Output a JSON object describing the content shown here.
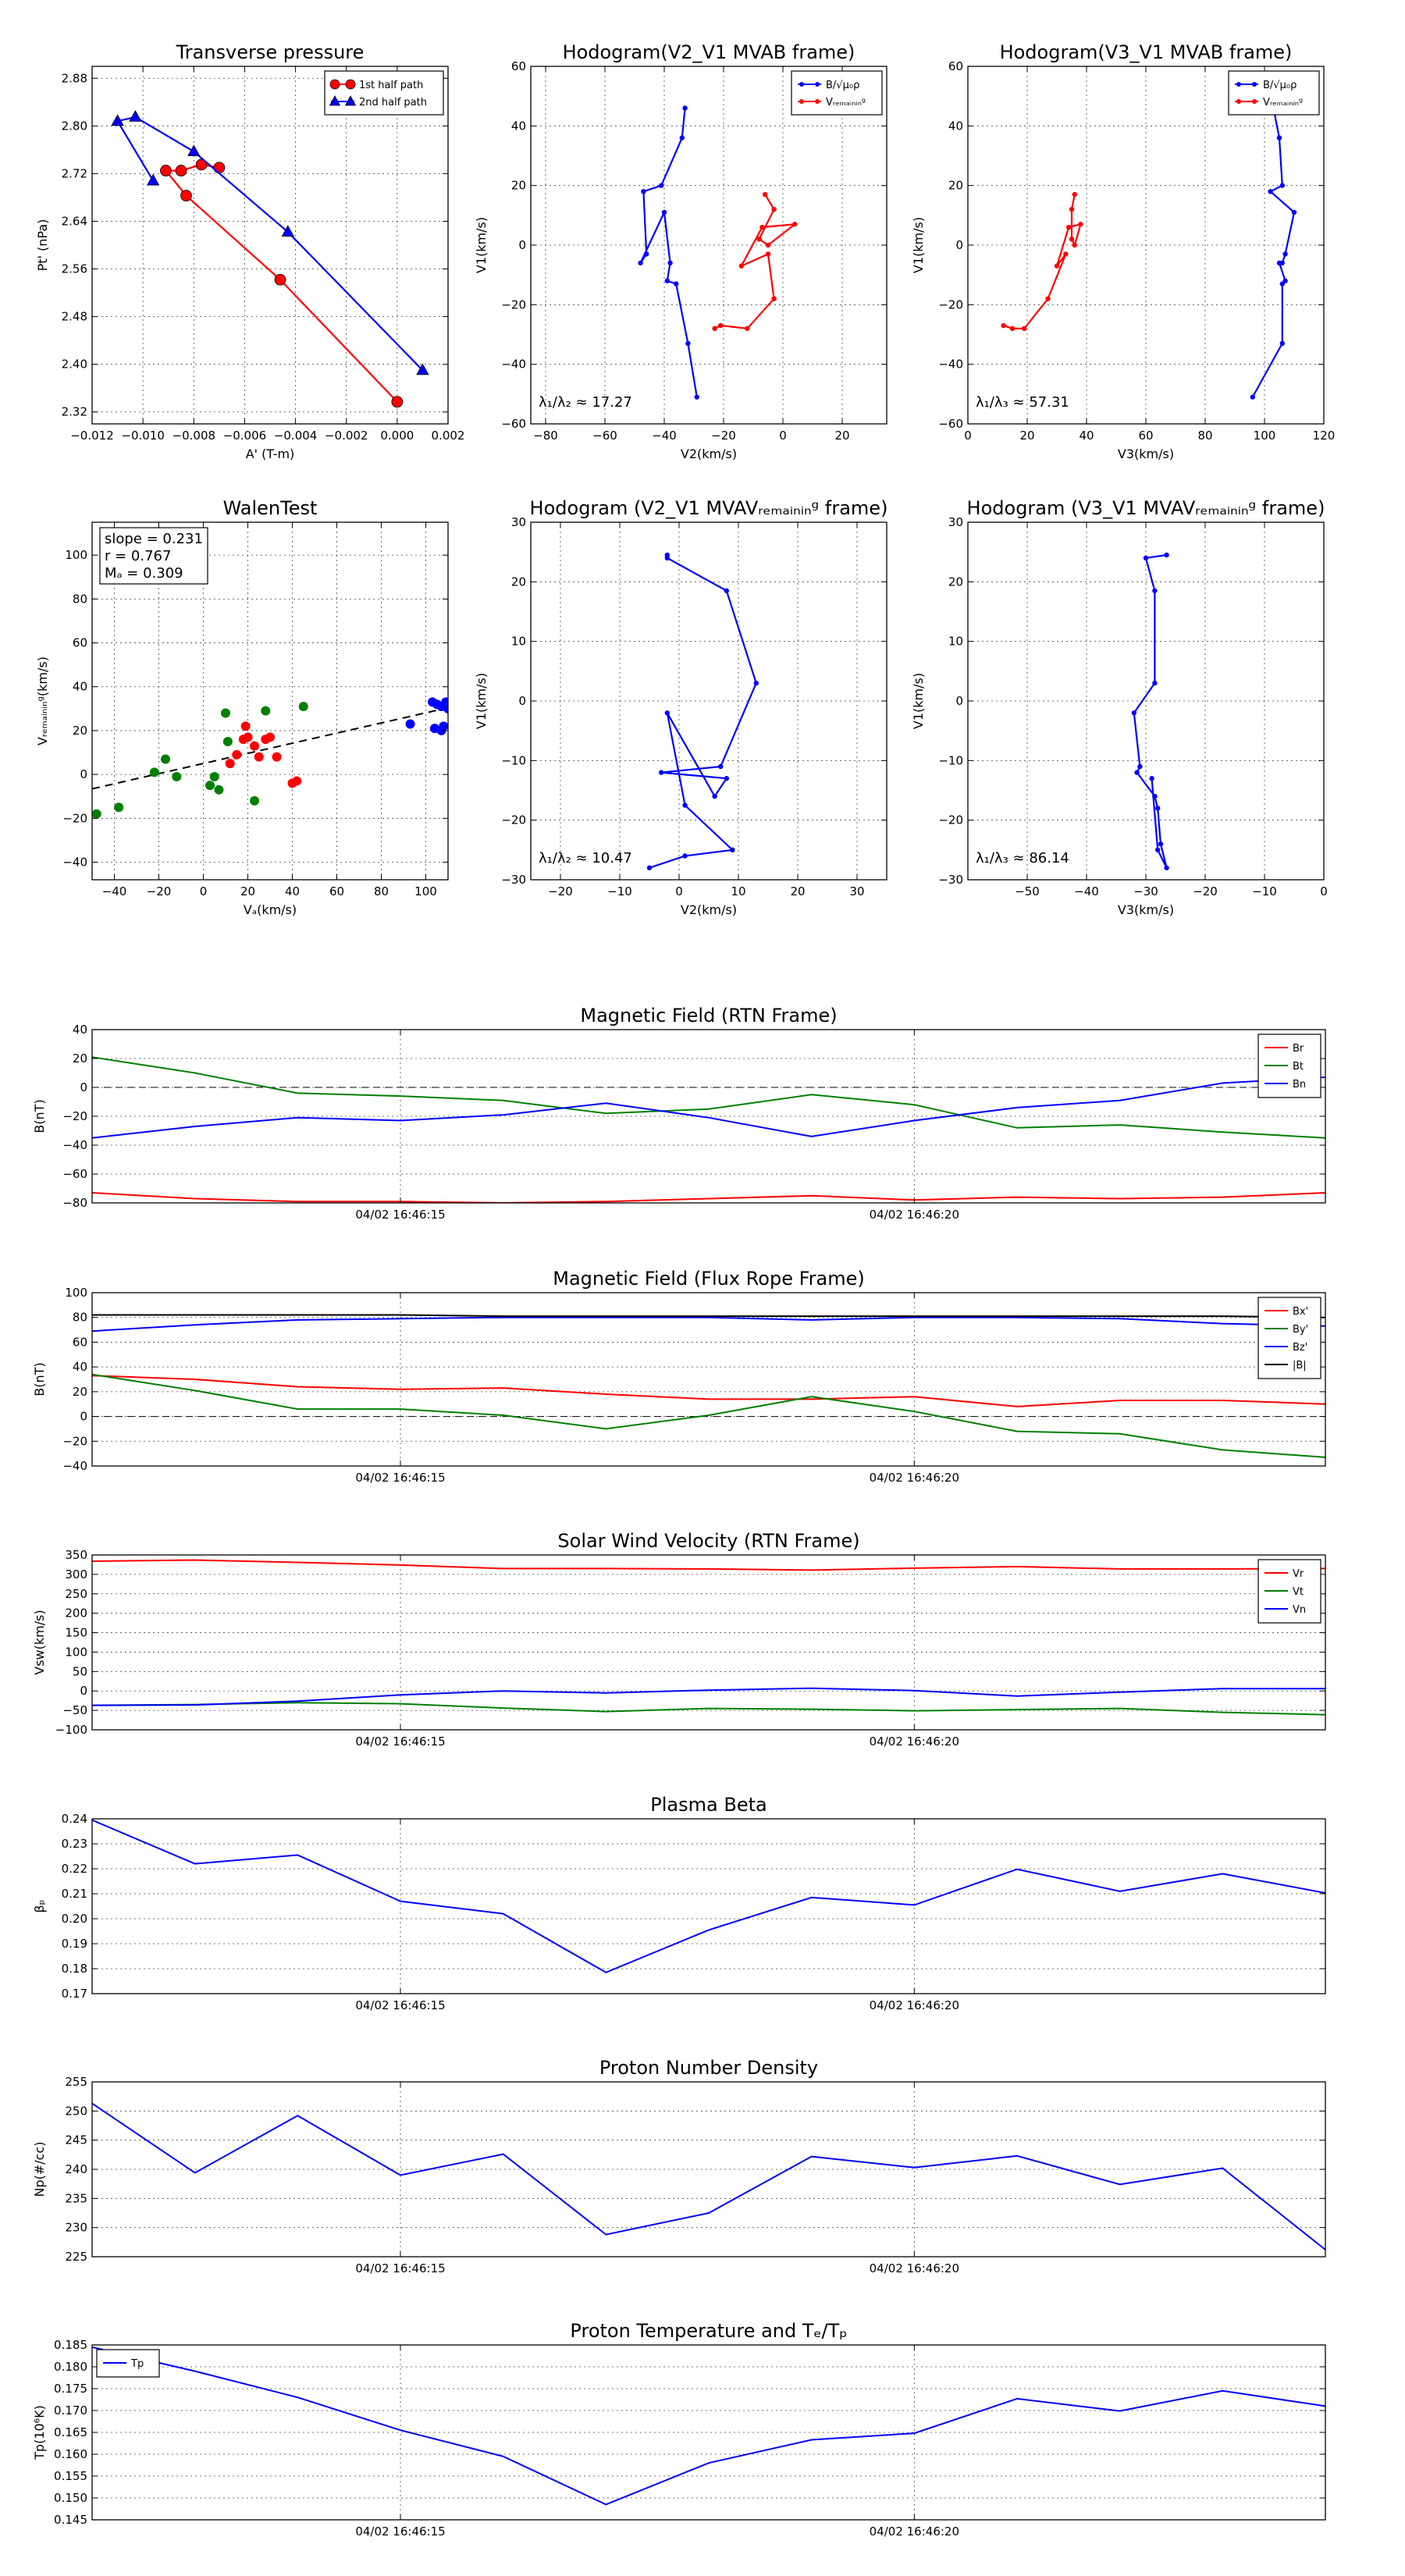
{
  "chart_data": [
    {
      "id": "pt",
      "type": "scatter",
      "title": "Transverse pressure",
      "xlabel": "A' (T-m)",
      "ylabel": "Pt' (nPa)",
      "xlim": [
        -0.012,
        0.002
      ],
      "ylim": [
        2.3,
        2.9
      ],
      "xticks": [
        -0.012,
        -0.01,
        -0.008,
        -0.006,
        -0.004,
        -0.002,
        0.0,
        0.002
      ],
      "xtick_labels": [
        "−0.012",
        "−0.010",
        "−0.008",
        "−0.006",
        "−0.004",
        "−0.002",
        "0.000",
        "0.002"
      ],
      "yticks": [
        2.32,
        2.4,
        2.48,
        2.56,
        2.64,
        2.72,
        2.8,
        2.88
      ],
      "ytick_labels": [
        "2.32",
        "2.40",
        "2.48",
        "2.56",
        "2.64",
        "2.72",
        "2.80",
        "2.88"
      ],
      "legend_position": "top-right",
      "series": [
        {
          "name": "1st half path",
          "color": "#ff0000",
          "marker": "circle",
          "x": [
            0.0,
            -0.0046,
            -0.0083,
            -0.0091,
            -0.0085,
            -0.0077,
            -0.007
          ],
          "y": [
            2.337,
            2.542,
            2.683,
            2.725,
            2.725,
            2.735,
            2.73
          ]
        },
        {
          "name": "2nd half path",
          "color": "#0000ff",
          "marker": "triangle",
          "x": [
            -0.0096,
            -0.011,
            -0.0103,
            -0.008,
            -0.0043,
            0.001
          ],
          "y": [
            2.708,
            2.808,
            2.815,
            2.757,
            2.622,
            2.39
          ]
        }
      ]
    },
    {
      "id": "hodo1",
      "type": "line",
      "title": "Hodogram(V2_V1 MVAB frame)",
      "xlabel": "V2(km/s)",
      "ylabel": "V1(km/s)",
      "xlim": [
        -85,
        35
      ],
      "ylim": [
        -60,
        60
      ],
      "xticks": [
        -80,
        -60,
        -40,
        -20,
        0,
        20
      ],
      "xtick_labels": [
        "−80",
        "−60",
        "−40",
        "−20",
        "0",
        "20"
      ],
      "yticks": [
        -60,
        -40,
        -20,
        0,
        20,
        40,
        60
      ],
      "ytick_labels": [
        "−60",
        "−40",
        "−20",
        "0",
        "20",
        "40",
        "60"
      ],
      "annotation": "λ₁/λ₂ ≈ 17.27",
      "legend_position": "top-right",
      "series": [
        {
          "name": "B/√μ₀ρ",
          "color": "#0000ff",
          "x": [
            -33,
            -34,
            -41,
            -47,
            -46,
            -48,
            -40,
            -38,
            -39,
            -36,
            -32,
            -29
          ],
          "y": [
            46,
            36,
            20,
            18,
            -3,
            -6,
            11,
            -6,
            -12,
            -13,
            -33,
            -51
          ]
        },
        {
          "name": "Vᵣₑₘₐᵢₙᵢₙᵍ",
          "color": "#ff0000",
          "x": [
            -23,
            -21,
            -12,
            -3,
            -5,
            -14,
            -7,
            4,
            -5,
            -8,
            -3,
            -6
          ],
          "y": [
            -28,
            -27,
            -28,
            -18,
            -3,
            -7,
            6,
            7,
            0,
            2,
            12,
            17
          ]
        }
      ]
    },
    {
      "id": "hodo2",
      "type": "line",
      "title": "Hodogram(V3_V1 MVAB frame)",
      "xlabel": "V3(km/s)",
      "ylabel": "V1(km/s)",
      "xlim": [
        0,
        120
      ],
      "ylim": [
        -60,
        60
      ],
      "xticks": [
        0,
        20,
        40,
        60,
        80,
        100,
        120
      ],
      "xtick_labels": [
        "0",
        "20",
        "40",
        "60",
        "80",
        "100",
        "120"
      ],
      "yticks": [
        -60,
        -40,
        -20,
        0,
        20,
        40,
        60
      ],
      "ytick_labels": [
        "−60",
        "−40",
        "−20",
        "0",
        "20",
        "40",
        "60"
      ],
      "annotation": "λ₁/λ₃ ≈ 57.31",
      "legend_position": "top-right",
      "series": [
        {
          "name": "B/√μ₀ρ",
          "color": "#0000ff",
          "x": [
            103,
            105,
            106,
            102,
            110,
            107,
            106,
            105,
            107,
            106,
            106,
            96
          ],
          "y": [
            46,
            36,
            20,
            18,
            11,
            -3,
            -6,
            -6,
            -12,
            -13,
            -33,
            -51
          ]
        },
        {
          "name": "Vᵣₑₘₐᵢₙᵢₙᵍ",
          "color": "#ff0000",
          "x": [
            12,
            15,
            19,
            27,
            33,
            30,
            34,
            38,
            36,
            35,
            35,
            36
          ],
          "y": [
            -27,
            -28,
            -28,
            -18,
            -3,
            -7,
            6,
            7,
            0,
            2,
            12,
            17
          ]
        }
      ]
    },
    {
      "id": "walen",
      "type": "scatter",
      "title": "WalenTest",
      "xlabel": "Vₐ(km/s)",
      "ylabel": "Vᵣₑₘₐᵢₙᵢₙᵍ(km/s)",
      "xlim": [
        -50,
        110
      ],
      "ylim": [
        -48,
        115
      ],
      "xticks": [
        -40,
        -20,
        0,
        20,
        40,
        60,
        80,
        100
      ],
      "xtick_labels": [
        "−40",
        "−20",
        "0",
        "20",
        "40",
        "60",
        "80",
        "100"
      ],
      "yticks": [
        -40,
        -20,
        0,
        20,
        40,
        60,
        80,
        100
      ],
      "ytick_labels": [
        "−40",
        "−20",
        "0",
        "20",
        "40",
        "60",
        "80",
        "100"
      ],
      "stats": [
        "slope = 0.231",
        "r = 0.767",
        "Mₐ = 0.309"
      ],
      "fit_line": {
        "slope": 0.231,
        "intercept": 5
      },
      "groups": [
        {
          "color": "#008000",
          "x": [
            -48,
            -38,
            -22,
            -17,
            -12,
            3,
            5,
            7,
            10,
            11,
            23,
            28,
            45
          ],
          "y": [
            -18,
            -15,
            1,
            7,
            -1,
            -5,
            -1,
            -7,
            28,
            15,
            -12,
            29,
            31
          ]
        },
        {
          "color": "#ff0000",
          "x": [
            12,
            15,
            18,
            19,
            20,
            23,
            25,
            28,
            30,
            33,
            40,
            42
          ],
          "y": [
            5,
            9,
            16,
            22,
            17,
            13,
            8,
            16,
            17,
            8,
            -4,
            -3
          ]
        },
        {
          "color": "#0000ff",
          "x": [
            93,
            103,
            105,
            107,
            109,
            110,
            112,
            104,
            107,
            108
          ],
          "y": [
            23,
            33,
            32,
            31,
            33,
            30,
            31,
            21,
            20,
            22
          ]
        }
      ]
    },
    {
      "id": "hodo3",
      "type": "line",
      "title": "Hodogram (V2_V1 MVAVᵣₑₘₐᵢₙᵢₙᵍ frame)",
      "xlabel": "V2(km/s)",
      "ylabel": "V1(km/s)",
      "xlim": [
        -25,
        35
      ],
      "ylim": [
        -30,
        30
      ],
      "xticks": [
        -20,
        -10,
        0,
        10,
        20,
        30
      ],
      "xtick_labels": [
        "−20",
        "−10",
        "0",
        "10",
        "20",
        "30"
      ],
      "yticks": [
        -30,
        -20,
        -10,
        0,
        10,
        20,
        30
      ],
      "ytick_labels": [
        "−30",
        "−20",
        "−10",
        "0",
        "10",
        "20",
        "30"
      ],
      "annotation": "λ₁/λ₂ ≈ 10.47",
      "series": [
        {
          "color": "#0000ff",
          "x": [
            -2,
            -2,
            8,
            13,
            7,
            -3,
            8,
            6,
            -2,
            1,
            9,
            1,
            -5
          ],
          "y": [
            24.5,
            24,
            18.5,
            3,
            -11,
            -12,
            -13,
            -16,
            -2,
            -17.5,
            -25,
            -26,
            -28
          ]
        }
      ]
    },
    {
      "id": "hodo4",
      "type": "line",
      "title": "Hodogram (V3_V1 MVAVᵣₑₘₐᵢₙᵢₙᵍ frame)",
      "xlabel": "V3(km/s)",
      "ylabel": "V1(km/s)",
      "xlim": [
        -60,
        0
      ],
      "ylim": [
        -30,
        30
      ],
      "xticks": [
        -50,
        -40,
        -30,
        -20,
        -10,
        0
      ],
      "xtick_labels": [
        "−50",
        "−40",
        "−30",
        "−20",
        "−10",
        "0"
      ],
      "yticks": [
        -30,
        -20,
        -10,
        0,
        10,
        20,
        30
      ],
      "ytick_labels": [
        "−30",
        "−20",
        "−10",
        "0",
        "10",
        "20",
        "30"
      ],
      "annotation": "λ₁/λ₃ ≈ 86.14",
      "series": [
        {
          "color": "#0000ff",
          "x": [
            -26.5,
            -30,
            -28.5,
            -28.5,
            -32,
            -31,
            -31.5,
            -28.5,
            -28,
            -27.5,
            -26.5,
            -28,
            -29
          ],
          "y": [
            24.5,
            24,
            18.5,
            3,
            -2,
            -11,
            -12,
            -16,
            -18,
            -24,
            -28,
            -25,
            -13
          ]
        }
      ]
    },
    {
      "id": "bfield",
      "type": "line",
      "title": "Magnetic Field (RTN Frame)",
      "ylabel": "B(nT)",
      "xlim": [
        0,
        12
      ],
      "ylim": [
        -80,
        40
      ],
      "yticks": [
        -80,
        -60,
        -40,
        -20,
        0,
        20,
        40
      ],
      "ytick_labels": [
        "−80",
        "−60",
        "−40",
        "−20",
        "0",
        "20",
        "40"
      ],
      "xticks": [
        3,
        8
      ],
      "xtick_labels": [
        "04/02 16:46:15",
        "04/02 16:46:20"
      ],
      "zero_line": true,
      "legend_position": "top-right",
      "series": [
        {
          "name": "Br",
          "color": "#ff0000",
          "values": [
            -73,
            -77,
            -79,
            -79,
            -80,
            -79,
            -77,
            -75,
            -78,
            -76,
            -77,
            -76,
            -73
          ]
        },
        {
          "name": "Bt",
          "color": "#008000",
          "values": [
            21,
            10,
            -4,
            -6,
            -9,
            -18,
            -15,
            -5,
            -12,
            -28,
            -26,
            -31,
            -35
          ]
        },
        {
          "name": "Bn",
          "color": "#0000ff",
          "values": [
            -35,
            -27,
            -21,
            -23,
            -19,
            -11,
            -21,
            -34,
            -23,
            -14,
            -9,
            3,
            7
          ]
        }
      ]
    },
    {
      "id": "bflux",
      "type": "line",
      "title": "Magnetic Field (Flux Rope Frame)",
      "ylabel": "B(nT)",
      "xlim": [
        0,
        12
      ],
      "ylim": [
        -40,
        100
      ],
      "yticks": [
        -40,
        -20,
        0,
        20,
        40,
        60,
        80,
        100
      ],
      "ytick_labels": [
        "−40",
        "−20",
        "0",
        "20",
        "40",
        "60",
        "80",
        "100"
      ],
      "xticks": [
        3,
        8
      ],
      "xtick_labels": [
        "04/02 16:46:15",
        "04/02 16:46:20"
      ],
      "zero_line": true,
      "legend_position": "top-right",
      "series": [
        {
          "name": "Bx'",
          "color": "#ff0000",
          "values": [
            33,
            30,
            24,
            22,
            23,
            18,
            14,
            14,
            16,
            8,
            13,
            13,
            10
          ]
        },
        {
          "name": "By'",
          "color": "#008000",
          "values": [
            34,
            21,
            6,
            6,
            1,
            -10,
            1,
            16,
            4,
            -12,
            -14,
            -27,
            -33
          ]
        },
        {
          "name": "Bz'",
          "color": "#0000ff",
          "values": [
            69,
            74,
            78,
            79,
            80,
            80,
            80,
            78,
            80,
            80,
            79,
            75,
            73
          ]
        },
        {
          "name": "|B|",
          "color": "#000000",
          "values": [
            82,
            82,
            82,
            82,
            81,
            81,
            81,
            81,
            81,
            81,
            81,
            81,
            80
          ]
        }
      ]
    },
    {
      "id": "vsw",
      "type": "line",
      "title": "Solar Wind Velocity (RTN Frame)",
      "ylabel": "Vsw(km/s)",
      "xlim": [
        0,
        12
      ],
      "ylim": [
        -100,
        350
      ],
      "yticks": [
        -100,
        -50,
        0,
        50,
        100,
        150,
        200,
        250,
        300,
        350
      ],
      "ytick_labels": [
        "−100",
        "−50",
        "0",
        "50",
        "100",
        "150",
        "200",
        "250",
        "300",
        "350"
      ],
      "xticks": [
        3,
        8
      ],
      "xtick_labels": [
        "04/02 16:46:15",
        "04/02 16:46:20"
      ],
      "legend_position": "top-right",
      "series": [
        {
          "name": "Vr",
          "color": "#ff0000",
          "values": [
            334,
            337,
            331,
            324,
            315,
            315,
            314,
            311,
            316,
            320,
            314,
            314,
            315
          ]
        },
        {
          "name": "Vt",
          "color": "#008000",
          "values": [
            -37,
            -35,
            -30,
            -33,
            -44,
            -53,
            -45,
            -47,
            -51,
            -48,
            -45,
            -55,
            -61
          ]
        },
        {
          "name": "Vn",
          "color": "#0000ff",
          "values": [
            -37,
            -36,
            -26,
            -10,
            0,
            -5,
            2,
            7,
            1,
            -13,
            -3,
            6,
            6
          ]
        }
      ]
    },
    {
      "id": "beta",
      "type": "line",
      "title": "Plasma Beta",
      "ylabel": "βₚ",
      "xlim": [
        0,
        12
      ],
      "ylim": [
        0.17,
        0.24
      ],
      "yticks": [
        0.17,
        0.18,
        0.19,
        0.2,
        0.21,
        0.22,
        0.23,
        0.24
      ],
      "ytick_labels": [
        "0.17",
        "0.18",
        "0.19",
        "0.20",
        "0.21",
        "0.22",
        "0.23",
        "0.24"
      ],
      "xticks": [
        3,
        8
      ],
      "xtick_labels": [
        "04/02 16:46:15",
        "04/02 16:46:20"
      ],
      "series": [
        {
          "color": "#0000ff",
          "values": [
            0.2395,
            0.222,
            0.2255,
            0.207,
            0.202,
            0.1785,
            0.1955,
            0.2085,
            0.2055,
            0.2198,
            0.211,
            0.218,
            0.2103
          ]
        }
      ]
    },
    {
      "id": "np",
      "type": "line",
      "title": "Proton Number Density",
      "ylabel": "Np(#/cc)",
      "xlim": [
        0,
        12
      ],
      "ylim": [
        225,
        255
      ],
      "yticks": [
        225,
        230,
        235,
        240,
        245,
        250,
        255
      ],
      "ytick_labels": [
        "225",
        "230",
        "235",
        "240",
        "245",
        "250",
        "255"
      ],
      "xticks": [
        3,
        8
      ],
      "xtick_labels": [
        "04/02 16:46:15",
        "04/02 16:46:20"
      ],
      "series": [
        {
          "color": "#0000ff",
          "values": [
            251.3,
            239.4,
            249.2,
            239.0,
            242.6,
            228.8,
            232.5,
            242.2,
            240.3,
            242.3,
            237.4,
            240.2,
            226.2
          ]
        }
      ]
    },
    {
      "id": "tp",
      "type": "line",
      "title": "Proton Temperature and Tₑ/Tₚ",
      "ylabel": "Tp(10⁶K)",
      "xlim": [
        0,
        12
      ],
      "ylim": [
        0.145,
        0.185
      ],
      "yticks": [
        0.145,
        0.15,
        0.155,
        0.16,
        0.165,
        0.17,
        0.175,
        0.18,
        0.185
      ],
      "ytick_labels": [
        "0.145",
        "0.150",
        "0.155",
        "0.160",
        "0.165",
        "0.170",
        "0.175",
        "0.180",
        "0.185"
      ],
      "xticks": [
        3,
        8
      ],
      "xtick_labels": [
        "04/02 16:46:15",
        "04/02 16:46:20"
      ],
      "legend_position": "top-left",
      "series": [
        {
          "name": "Tp",
          "color": "#0000ff",
          "values": [
            0.1845,
            0.179,
            0.173,
            0.1655,
            0.1595,
            0.1485,
            0.158,
            0.1633,
            0.1648,
            0.1727,
            0.1699,
            0.1745,
            0.171
          ]
        }
      ]
    }
  ]
}
